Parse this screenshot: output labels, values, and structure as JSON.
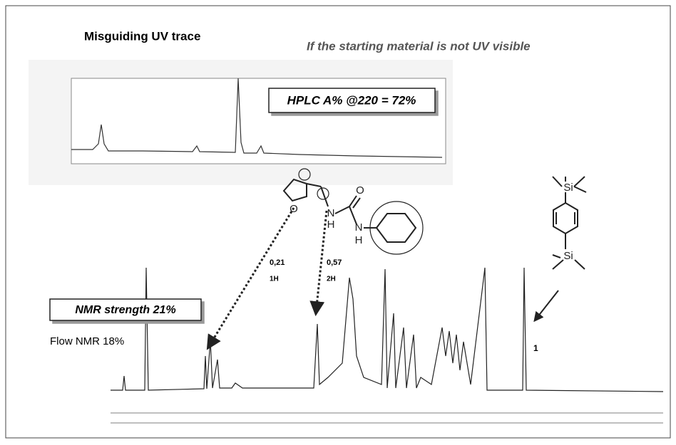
{
  "header": {
    "title": "Misguiding UV trace",
    "subtitle": "If the starting material is not UV visible"
  },
  "hplc": {
    "label": "HPLC A% @220 = 72%"
  },
  "nmr": {
    "strength_label": "NMR strength 21%",
    "flow_label": "Flow NMR 18%",
    "integrals": [
      {
        "value": "0,21",
        "protons": "1H"
      },
      {
        "value": "0,57",
        "protons": "2H"
      },
      {
        "value": "1"
      }
    ]
  },
  "molecules": {
    "urea_atoms": [
      "O",
      "N",
      "H",
      "O",
      "N",
      "H"
    ],
    "silane_atoms": [
      "Si",
      "Si"
    ]
  }
}
